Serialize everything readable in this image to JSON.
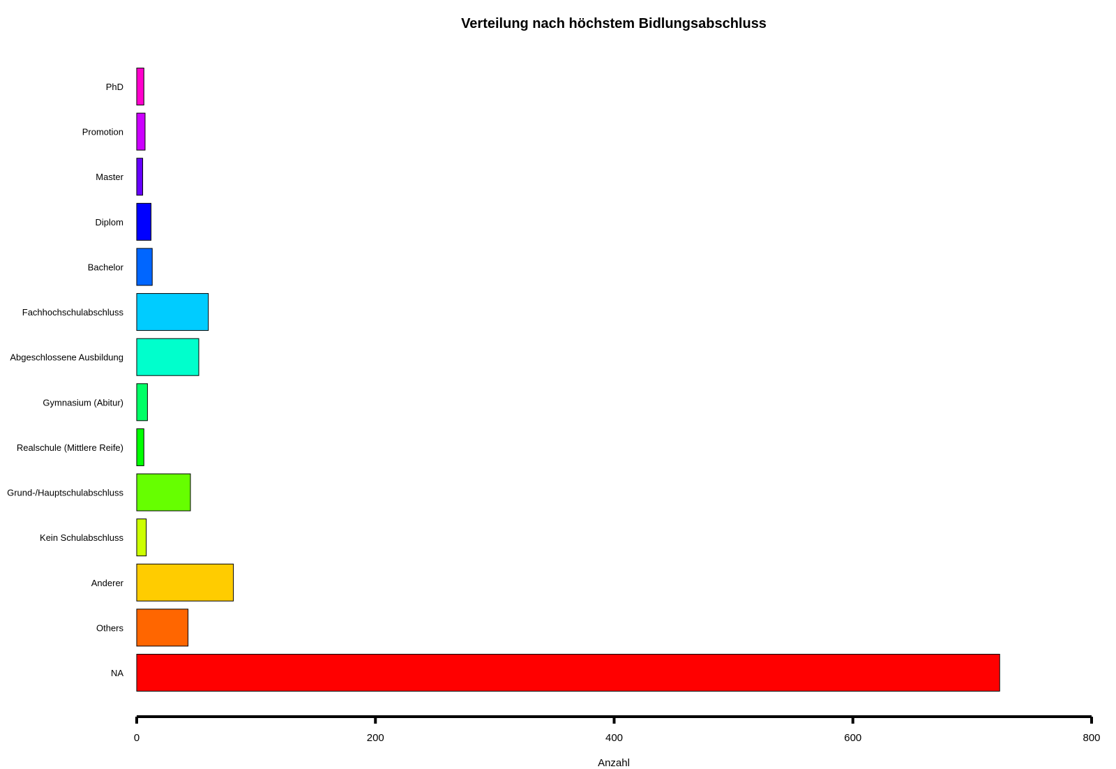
{
  "chart_data": {
    "type": "bar",
    "orientation": "horizontal",
    "title": "Verteilung nach höchstem Bidlungsabschluss",
    "xlabel": "Anzahl",
    "ylabel": "",
    "xlim": [
      0,
      800
    ],
    "x_ticks": [
      0,
      200,
      400,
      600,
      800
    ],
    "grid": false,
    "categories": [
      "NA",
      "Others",
      "Anderer",
      "Kein Schulabschluss",
      "Grund-/Hauptschulabschluss",
      "Realschule (Mittlere Reife)",
      "Gymnasium (Abitur)",
      "Abgeschlossene Ausbildung",
      "Fachhochschulabschluss",
      "Bachelor",
      "Diplom",
      "Master",
      "Promotion",
      "PhD"
    ],
    "values": [
      723,
      43,
      81,
      8,
      45,
      6,
      9,
      52,
      60,
      13,
      12,
      5,
      7,
      6
    ],
    "colors": [
      "#ff0000",
      "#ff6600",
      "#ffcc00",
      "#ccff00",
      "#66ff00",
      "#00ff00",
      "#00ff66",
      "#00ffcc",
      "#00ccff",
      "#0066ff",
      "#0000ff",
      "#6600ff",
      "#cc00ff",
      "#ff00cc"
    ]
  }
}
